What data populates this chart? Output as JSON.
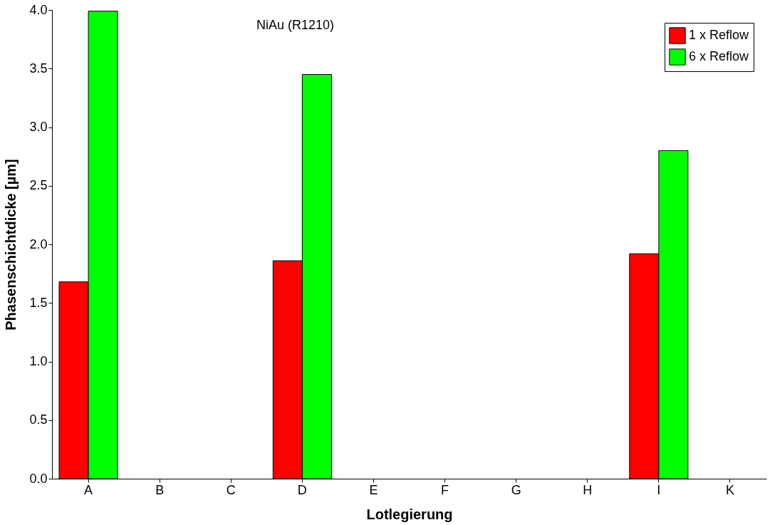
{
  "chart_data": {
    "type": "bar",
    "title": "NiAu (R1210)",
    "xlabel": "Lotlegierung",
    "ylabel": "Phasenschichtdicke [µm]",
    "categories": [
      "A",
      "B",
      "C",
      "D",
      "E",
      "F",
      "G",
      "H",
      "I",
      "K"
    ],
    "series": [
      {
        "name": "1 x Reflow",
        "color": "#ff0000",
        "values": [
          1.68,
          null,
          null,
          1.86,
          null,
          null,
          null,
          null,
          1.92,
          null
        ]
      },
      {
        "name": "6 x Reflow",
        "color": "#00ff00",
        "values": [
          3.99,
          null,
          null,
          3.45,
          null,
          null,
          null,
          null,
          2.8,
          null
        ]
      }
    ],
    "ylim": [
      0,
      4.0
    ],
    "yticks": [
      {
        "value": 0,
        "label": "0.0"
      },
      {
        "value": 0.5,
        "label": "0.5"
      },
      {
        "value": 1,
        "label": "1.0"
      },
      {
        "value": 1.5,
        "label": "1.5"
      },
      {
        "value": 2,
        "label": "2.0"
      },
      {
        "value": 2.5,
        "label": "2.5"
      },
      {
        "value": 3,
        "label": "3.0"
      },
      {
        "value": 3.5,
        "label": "3.5"
      },
      {
        "value": 4,
        "label": "4.0"
      }
    ],
    "grid": false,
    "legend": "top right"
  }
}
